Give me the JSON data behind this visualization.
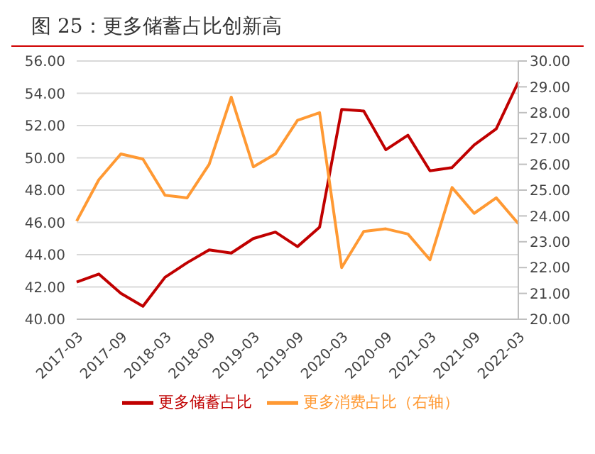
{
  "chart_data": {
    "type": "line",
    "title": "图 25：更多储蓄占比创新高",
    "categories": [
      "2017-03",
      null,
      "2017-09",
      null,
      "2018-03",
      null,
      "2018-09",
      null,
      "2019-03",
      null,
      "2019-09",
      null,
      "2020-03",
      null,
      "2020-09",
      null,
      "2021-03",
      null,
      "2021-09",
      null,
      "2022-03"
    ],
    "series": [
      {
        "name": "更多储蓄占比",
        "color": "#c00000",
        "values": [
          42.3,
          42.8,
          41.6,
          40.8,
          42.6,
          43.5,
          44.3,
          44.1,
          45.0,
          45.4,
          44.5,
          45.7,
          53.0,
          52.9,
          50.5,
          51.4,
          49.2,
          49.4,
          50.8,
          51.8,
          54.7
        ]
      },
      {
        "name": "更多消费占比（右轴）",
        "color": "#ff9933",
        "axis": "y2",
        "values": [
          23.8,
          25.4,
          26.4,
          26.2,
          24.8,
          24.7,
          26.0,
          28.6,
          25.9,
          26.4,
          27.7,
          28.0,
          22.0,
          23.4,
          23.5,
          23.3,
          22.3,
          25.1,
          24.1,
          24.7,
          23.7
        ]
      }
    ],
    "ylim": [
      40,
      56
    ],
    "yticks": [
      {
        "value": 40,
        "label": "40.00"
      },
      {
        "value": 42,
        "label": "42.00"
      },
      {
        "value": 44,
        "label": "44.00"
      },
      {
        "value": 46,
        "label": "46.00"
      },
      {
        "value": 48,
        "label": "48.00"
      },
      {
        "value": 50,
        "label": "50.00"
      },
      {
        "value": 52,
        "label": "52.00"
      },
      {
        "value": 54,
        "label": "54.00"
      },
      {
        "value": 56,
        "label": "56.00"
      }
    ],
    "y2lim": [
      20,
      30
    ],
    "y2ticks": [
      {
        "value": 20,
        "label": "20.00"
      },
      {
        "value": 21,
        "label": "21.00"
      },
      {
        "value": 22,
        "label": "22.00"
      },
      {
        "value": 23,
        "label": "23.00"
      },
      {
        "value": 24,
        "label": "24.00"
      },
      {
        "value": 25,
        "label": "25.00"
      },
      {
        "value": 26,
        "label": "26.00"
      },
      {
        "value": 27,
        "label": "27.00"
      },
      {
        "value": 28,
        "label": "28.00"
      },
      {
        "value": 29,
        "label": "29.00"
      },
      {
        "value": 30,
        "label": "30.00"
      }
    ],
    "grid": "y",
    "legend": "bottom",
    "marker": "none",
    "line_style": "solid"
  }
}
